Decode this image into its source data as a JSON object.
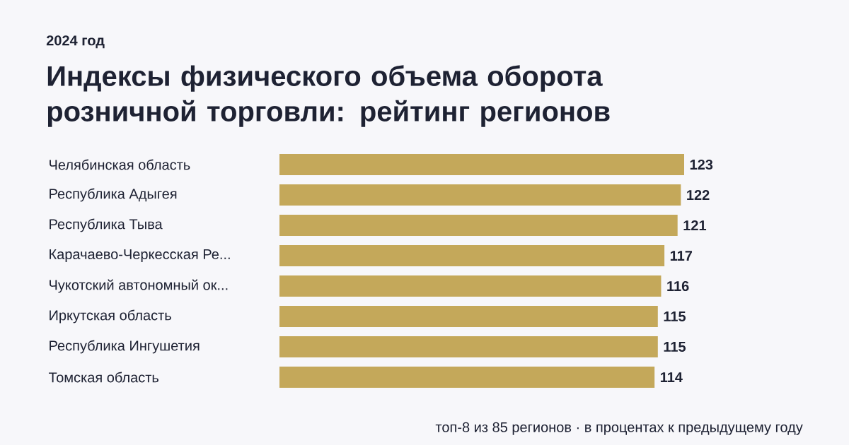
{
  "chart_data": {
    "type": "bar",
    "orientation": "horizontal",
    "title": "Индексы физического объема оборота розничной торговли: рейтинг регионов",
    "subtitle": "2024 год",
    "categories": [
      "Челябинская область",
      "Республика Адыгея",
      "Республика Тыва",
      "Карачаево-Черкесская Ре...",
      "Чукотский автономный ок...",
      "Иркутская область",
      "Республика Ингушетия",
      "Томская область"
    ],
    "values": [
      123,
      122,
      121,
      117,
      116,
      115,
      115,
      114
    ],
    "color": "#c4a85a",
    "data_labels": true,
    "annotations": [
      "топ-8 из 85 регионов · в процентах к предыдущему году"
    ]
  }
}
